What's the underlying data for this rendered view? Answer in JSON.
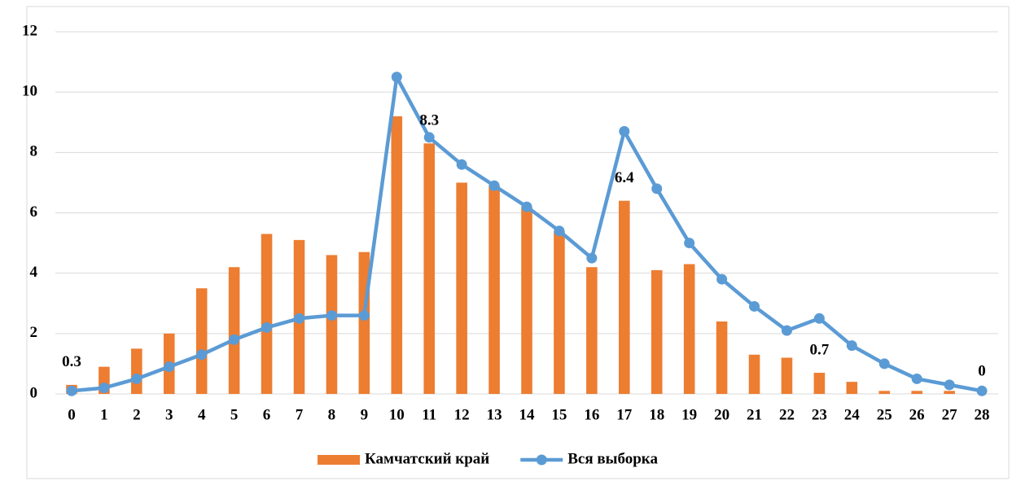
{
  "chart_data": {
    "type": "bar_line",
    "categories": [
      "0",
      "1",
      "2",
      "3",
      "4",
      "5",
      "6",
      "7",
      "8",
      "9",
      "10",
      "11",
      "12",
      "13",
      "14",
      "15",
      "16",
      "17",
      "18",
      "19",
      "20",
      "21",
      "22",
      "23",
      "24",
      "25",
      "26",
      "27",
      "28"
    ],
    "series": [
      {
        "name": "Камчатский край",
        "type": "bar",
        "color": "#ed7d31",
        "values": [
          0.3,
          0.9,
          1.5,
          2.0,
          3.5,
          4.2,
          5.3,
          5.1,
          4.6,
          4.7,
          9.2,
          8.3,
          7.0,
          6.9,
          6.2,
          5.4,
          4.2,
          6.4,
          4.1,
          4.3,
          2.4,
          1.3,
          1.2,
          0.7,
          0.4,
          0.1,
          0.1,
          0.1,
          0
        ],
        "value_labels": [
          "0.3",
          null,
          null,
          null,
          null,
          null,
          null,
          null,
          null,
          null,
          null,
          "8.3",
          null,
          null,
          null,
          null,
          null,
          "6.4",
          null,
          null,
          null,
          null,
          null,
          "0.7",
          null,
          null,
          null,
          null,
          "0"
        ]
      },
      {
        "name": "Вся выборка",
        "type": "line",
        "color": "#5b9bd5",
        "values": [
          0.1,
          0.2,
          0.5,
          0.9,
          1.3,
          1.8,
          2.2,
          2.5,
          2.6,
          2.6,
          10.5,
          8.5,
          7.6,
          6.9,
          6.2,
          5.4,
          4.5,
          8.7,
          6.8,
          5.0,
          3.8,
          2.9,
          2.1,
          2.5,
          1.6,
          1.0,
          0.5,
          0.3,
          0.1
        ]
      }
    ],
    "ylim": [
      0,
      12
    ],
    "yticks": [
      0,
      2,
      4,
      6,
      8,
      10,
      12
    ],
    "grid": true,
    "legend": "bottom"
  }
}
